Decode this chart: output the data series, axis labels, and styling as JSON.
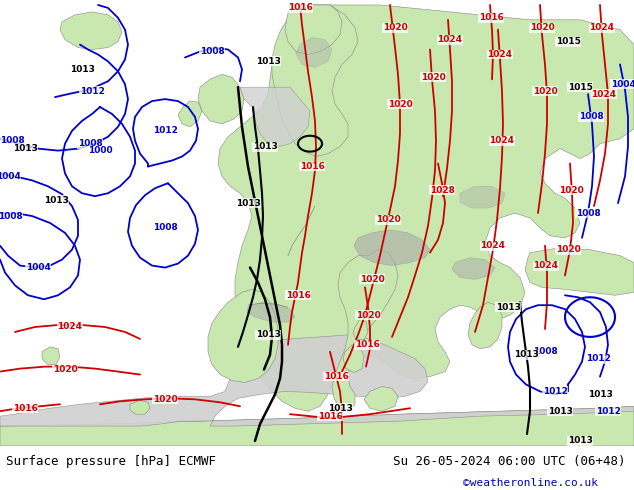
{
  "fig_width": 6.34,
  "fig_height": 4.9,
  "dpi": 100,
  "background_color": "#ffffff",
  "land_color": "#c8e8b0",
  "ocean_color": "#d8d8d8",
  "label_left": "Surface pressure [hPa] ECMWF",
  "label_right": "Su 26-05-2024 06:00 UTC (06+48)",
  "label_credit": "©weatheronline.co.uk",
  "footer_bg": "#ffffff",
  "red": "#cc0000",
  "blue": "#0000cc",
  "black": "#000000",
  "label_fontsize": 9,
  "credit_fontsize": 8,
  "credit_color": "#0000bb"
}
